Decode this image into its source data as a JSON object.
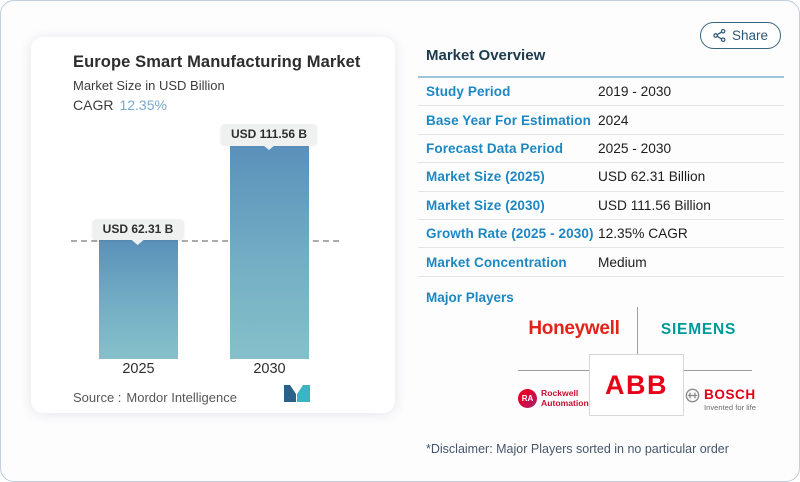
{
  "share": {
    "label": "Share"
  },
  "chart_card": {
    "title": "Europe Smart Manufacturing Market",
    "subtitle": "Market Size in USD Billion",
    "cagr_label": "CAGR",
    "cagr_value": "12.35%",
    "source_label": "Source :",
    "source_value": "Mordor Intelligence"
  },
  "chart_data": {
    "type": "bar",
    "title": "Europe Smart Manufacturing Market",
    "subtitle": "Market Size in USD Billion",
    "unit": "USD Billion",
    "categories": [
      "2025",
      "2030"
    ],
    "values": [
      62.31,
      111.56
    ],
    "value_labels": [
      "USD 62.31 B",
      "USD 111.56 B"
    ],
    "cagr": "12.35%",
    "reference_line": 62.31,
    "ylim": [
      0,
      111.56
    ],
    "grid": "off",
    "legend": "none",
    "bar_gradient_top": "#5a90ba",
    "bar_gradient_bottom": "#85c0ca"
  },
  "overview": {
    "heading": "Market Overview",
    "rows": [
      {
        "label": "Study Period",
        "value": "2019 - 2030"
      },
      {
        "label": "Base Year For Estimation",
        "value": "2024"
      },
      {
        "label": "Forecast Data Period",
        "value": "2025 - 2030"
      },
      {
        "label": "Market Size (2025)",
        "value": "USD 62.31 Billion"
      },
      {
        "label": "Market Size (2030)",
        "value": "USD 111.56 Billion"
      },
      {
        "label": "Growth Rate (2025 - 2030)",
        "value": "12.35% CAGR"
      },
      {
        "label": "Market Concentration",
        "value": "Medium"
      }
    ],
    "major_players_label": "Major Players"
  },
  "players": {
    "honeywell": "Honeywell",
    "siemens": "SIEMENS",
    "abb": "ABB",
    "rockwell_badge": "RA",
    "rockwell_line1": "Rockwell",
    "rockwell_line2": "Automation",
    "bosch": "BOSCH",
    "bosch_tagline": "Invented for life"
  },
  "disclaimer": "*Disclaimer: Major Players sorted in no particular order",
  "colors": {
    "accent_label_blue": "#1d87c2",
    "heading_navy": "#1c3b4d",
    "cagr_blue": "#7aa9ca",
    "honeywell_red": "#e2231a",
    "siemens_teal": "#009999",
    "abb_red": "#e60018",
    "rockwell_red": "#c8102e",
    "bosch_red": "#e30016",
    "share_blue": "#2d5874"
  }
}
